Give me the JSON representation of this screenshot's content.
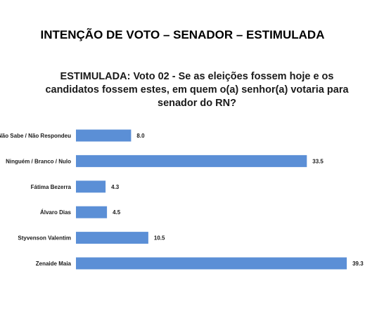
{
  "chart_data": {
    "type": "bar",
    "orientation": "horizontal",
    "title": "INTENÇÃO DE VOTO – SENADOR – ESTIMULADA",
    "subtitle": "ESTIMULADA: Voto 02 - Se as eleições fossem hoje e os candidatos fossem estes, em quem o(a) senhor(a) votaria para senador do RN?",
    "categories": [
      "Não Sabe / Não Respondeu",
      "Ninguém / Branco / Nulo",
      "Fátima Bezerra",
      "Álvaro Dias",
      "Styvenson Valentim",
      "Zenaide Maia"
    ],
    "values": [
      8.0,
      33.5,
      4.3,
      4.5,
      10.5,
      39.3
    ],
    "value_labels": [
      "8.0",
      "33.5",
      "4.3",
      "4.5",
      "10.5",
      "39.3"
    ],
    "xlim": [
      0,
      40
    ],
    "grid": false,
    "legend": "none",
    "bar_color": "#5b8fd6"
  }
}
